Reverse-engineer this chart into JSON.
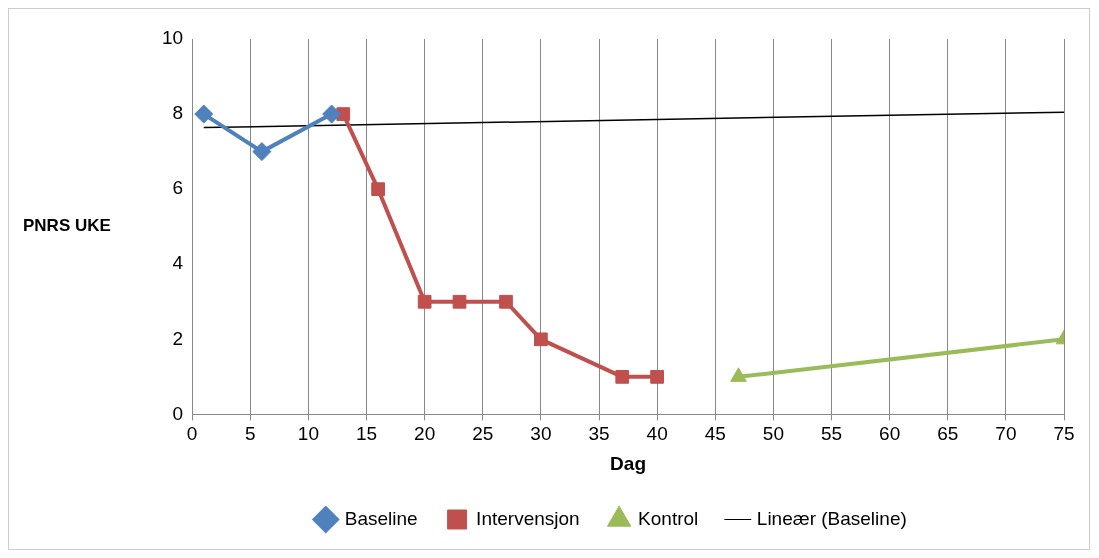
{
  "chart_data": {
    "type": "line",
    "xlabel": "Dag",
    "ylabel": "PNRS UKE",
    "xlim": [
      0,
      75
    ],
    "xticks": [
      0,
      5,
      10,
      15,
      20,
      25,
      30,
      35,
      40,
      45,
      50,
      55,
      60,
      65,
      70,
      75
    ],
    "ylim": [
      0,
      10
    ],
    "yticks": [
      0,
      2,
      4,
      6,
      8,
      10
    ],
    "grid": "x",
    "legend": "bottom",
    "series": [
      {
        "name": "Baseline",
        "color": "#4f81bd",
        "marker": "diamond",
        "x": [
          1,
          6,
          12
        ],
        "values": [
          8,
          7,
          8
        ]
      },
      {
        "name": "Intervensjon",
        "color": "#c0504d",
        "marker": "square",
        "x": [
          13,
          16,
          20,
          23,
          27,
          30,
          37,
          40
        ],
        "values": [
          8,
          6,
          3,
          3,
          3,
          2,
          1,
          1
        ]
      },
      {
        "name": "Kontrol",
        "color": "#9bbb59",
        "marker": "triangle",
        "x": [
          47,
          75
        ],
        "values": [
          1,
          2
        ]
      },
      {
        "name": "Lineær (Baseline)",
        "color": "#000000",
        "marker": "none",
        "x": [
          1,
          75
        ],
        "values": [
          7.64,
          8.05
        ]
      }
    ]
  }
}
